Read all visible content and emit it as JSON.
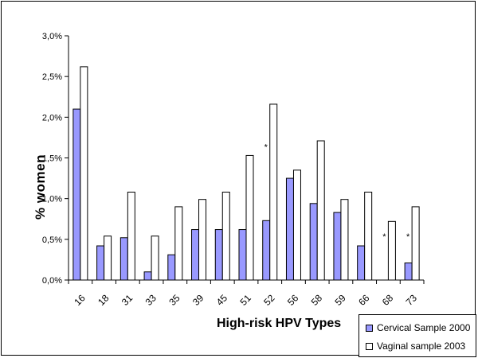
{
  "chart_data": {
    "type": "bar",
    "title": "",
    "xlabel": "High-risk HPV Types",
    "ylabel": "% women",
    "categories": [
      "16",
      "18",
      "31",
      "33",
      "35",
      "39",
      "45",
      "51",
      "52",
      "56",
      "58",
      "59",
      "66",
      "68",
      "73"
    ],
    "series": [
      {
        "name": "Cervical Sample 2000",
        "color": "#9999ff",
        "values": [
          2.1,
          0.42,
          0.52,
          0.1,
          0.31,
          0.62,
          0.62,
          0.62,
          0.73,
          1.25,
          0.94,
          0.83,
          0.42,
          0,
          0.21
        ]
      },
      {
        "name": "Vaginal sample 2003",
        "color": "#ffffff",
        "values": [
          2.62,
          0.54,
          1.08,
          0.54,
          0.9,
          0.99,
          1.08,
          1.53,
          2.16,
          1.35,
          1.71,
          0.99,
          1.08,
          0.72,
          0.9
        ]
      }
    ],
    "ylim": [
      0,
      3.0
    ],
    "yticks": [
      "0,0%",
      "0,5%",
      "1,0%",
      "1,5%",
      "2,0%",
      "2,5%",
      "3,0%"
    ],
    "annotations": [
      {
        "text": "*",
        "category": "52",
        "y": 1.6
      },
      {
        "text": "*",
        "category": "68",
        "y": 0.5
      },
      {
        "text": "*",
        "category": "73",
        "y": 0.5
      }
    ],
    "grid": false,
    "legend": "bottom-right"
  }
}
